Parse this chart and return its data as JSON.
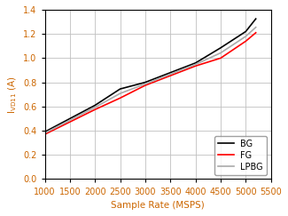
{
  "title": "",
  "xlabel": "Sample Rate (MSPS)",
  "ylabel": "I$_\\mathregular{VD11}$ (A)",
  "xlim": [
    1000,
    5500
  ],
  "ylim": [
    0,
    1.4
  ],
  "xticks": [
    1000,
    1500,
    2000,
    2500,
    3000,
    3500,
    4000,
    4500,
    5000,
    5500
  ],
  "yticks": [
    0,
    0.2,
    0.4,
    0.6,
    0.8,
    1.0,
    1.2,
    1.4
  ],
  "lines": {
    "BG": {
      "x": [
        1000,
        2000,
        2500,
        3000,
        4000,
        4500,
        5000,
        5200
      ],
      "y": [
        0.39,
        0.61,
        0.745,
        0.8,
        0.96,
        1.085,
        1.22,
        1.325
      ],
      "color": "#000000",
      "linewidth": 1.2
    },
    "FG": {
      "x": [
        1000,
        2000,
        2500,
        3000,
        4000,
        4500,
        5000,
        5200
      ],
      "y": [
        0.37,
        0.575,
        0.67,
        0.775,
        0.935,
        1.0,
        1.14,
        1.21
      ],
      "color": "#ff0000",
      "linewidth": 1.2
    },
    "LPBG": {
      "x": [
        1000,
        2000,
        2500,
        3000,
        4000,
        4500,
        5000,
        5200
      ],
      "y": [
        0.38,
        0.593,
        0.708,
        0.787,
        0.948,
        1.043,
        1.18,
        1.255
      ],
      "color": "#aaaaaa",
      "linewidth": 1.2
    }
  },
  "legend_loc": "lower right",
  "grid_color": "#c0c0c0",
  "spine_color": "#000000",
  "figsize": [
    3.25,
    2.43
  ],
  "dpi": 100,
  "xlabel_color": "#cc6600",
  "ylabel_color": "#cc6600",
  "tick_label_color": "#cc6600",
  "tick_color": "#000000",
  "font_size": 7.5,
  "legend_font_size": 7
}
